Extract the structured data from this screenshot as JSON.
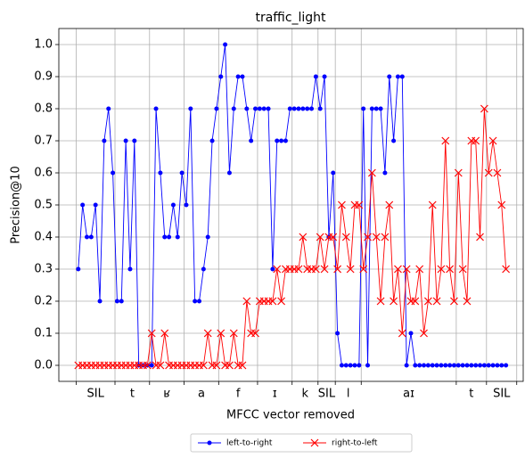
{
  "chart_data": {
    "type": "line",
    "title": "traffic_light",
    "xlabel": "MFCC vector removed",
    "ylabel": "Precision@10",
    "xlim": [
      -4.5,
      103
    ],
    "ylim": [
      -0.05,
      1.05
    ],
    "yticks": [
      {
        "value": 0,
        "label": "0.0"
      },
      0.1,
      0.2,
      0.3,
      0.4,
      0.5,
      0.6,
      0.7,
      0.8,
      0.9,
      {
        "value": 1,
        "label": "1.0"
      }
    ],
    "grid": true,
    "legend": "lower center",
    "segments": [
      {
        "label": "SIL",
        "start": -0.5,
        "end": 8.5
      },
      {
        "label": "t",
        "start": 8.5,
        "end": 16.5
      },
      {
        "label": "ʁ",
        "start": 16.5,
        "end": 24.5
      },
      {
        "label": "a",
        "start": 24.5,
        "end": 32.5
      },
      {
        "label": "f",
        "start": 32.5,
        "end": 41.5
      },
      {
        "label": "ɪ",
        "start": 41.5,
        "end": 49.5
      },
      {
        "label": "k",
        "start": 49.5,
        "end": 55.5
      },
      {
        "label": "SIL",
        "start": 55.5,
        "end": 59.5
      },
      {
        "label": "l",
        "start": 59.5,
        "end": 65.5
      },
      {
        "label": "aɪ",
        "start": 65.5,
        "end": 87.5
      },
      {
        "label": "t",
        "start": 87.5,
        "end": 94.5
      },
      {
        "label": "SIL",
        "start": 94.5,
        "end": 101.5
      }
    ],
    "series": [
      {
        "name": "left-to-right",
        "color": "#0000ff",
        "marker": "circle",
        "values": [
          0.3,
          0.5,
          0.4,
          0.4,
          0.5,
          0.2,
          0.7,
          0.8,
          0.6,
          0.2,
          0.2,
          0.7,
          0.3,
          0.7,
          0,
          0,
          0,
          0,
          0.8,
          0.6,
          0.4,
          0.4,
          0.5,
          0.4,
          0.6,
          0.5,
          0.8,
          0.2,
          0.2,
          0.3,
          0.4,
          0.7,
          0.8,
          0.9,
          1.0,
          0.6,
          0.8,
          0.9,
          0.9,
          0.8,
          0.7,
          0.8,
          0.8,
          0.8,
          0.8,
          0.3,
          0.7,
          0.7,
          0.7,
          0.8,
          0.8,
          0.8,
          0.8,
          0.8,
          0.8,
          0.9,
          0.8,
          0.9,
          0.4,
          0.6,
          0.1,
          0,
          0,
          0,
          0,
          0,
          0.8,
          0,
          0.8,
          0.8,
          0.8,
          0.6,
          0.9,
          0.7,
          0.9,
          0.9,
          0,
          0.1,
          0,
          0,
          0,
          0,
          0,
          0,
          0,
          0,
          0,
          0,
          0,
          0,
          0,
          0,
          0,
          0,
          0,
          0,
          0,
          0,
          0,
          0
        ]
      },
      {
        "name": "right-to-left",
        "color": "#ff0000",
        "marker": "x",
        "values": [
          0,
          0,
          0,
          0,
          0,
          0,
          0,
          0,
          0,
          0,
          0,
          0,
          0,
          0,
          0,
          0,
          0,
          0.1,
          0,
          0,
          0.1,
          0,
          0,
          0,
          0,
          0,
          0,
          0,
          0,
          0,
          0.1,
          0,
          0,
          0.1,
          0,
          0,
          0.1,
          0,
          0,
          0.2,
          0.1,
          0.1,
          0.2,
          0.2,
          0.2,
          0.2,
          0.3,
          0.2,
          0.3,
          0.3,
          0.3,
          0.3,
          0.4,
          0.3,
          0.3,
          0.3,
          0.4,
          0.3,
          0.4,
          0.4,
          0.3,
          0.5,
          0.4,
          0.3,
          0.5,
          0.5,
          0.3,
          0.4,
          0.6,
          0.4,
          0.2,
          0.4,
          0.5,
          0.2,
          0.3,
          0.1,
          0.3,
          0.2,
          0.2,
          0.3,
          0.1,
          0.2,
          0.5,
          0.2,
          0.3,
          0.7,
          0.3,
          0.2,
          0.6,
          0.3,
          0.2,
          0.7,
          0.7,
          0.4,
          0.8,
          0.6,
          0.7,
          0.6,
          0.5,
          0.3
        ]
      }
    ]
  }
}
